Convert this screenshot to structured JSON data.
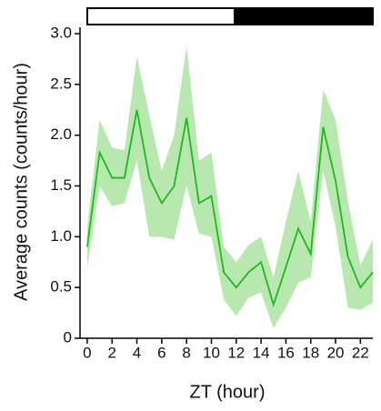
{
  "chart_data": {
    "type": "line",
    "x_label": "ZT (hour)",
    "y_label": "Average counts (counts/hour)",
    "x": [
      0,
      1,
      2,
      3,
      4,
      5,
      6,
      7,
      8,
      9,
      10,
      11,
      12,
      13,
      14,
      15,
      16,
      17,
      18,
      19,
      20,
      21,
      22,
      23
    ],
    "series": [
      {
        "color": "#1fb81f",
        "band_color": "#b8e8b0",
        "values": [
          0.9,
          1.83,
          1.58,
          1.58,
          2.25,
          1.58,
          1.33,
          1.5,
          2.17,
          1.33,
          1.4,
          0.65,
          0.5,
          0.65,
          0.75,
          0.33,
          0.7,
          1.08,
          0.83,
          2.08,
          1.55,
          0.8,
          0.5,
          0.65
        ],
        "lower": [
          0.7,
          1.5,
          1.3,
          1.33,
          1.75,
          1.0,
          1.0,
          0.97,
          1.5,
          1.03,
          1.0,
          0.38,
          0.22,
          0.4,
          0.45,
          0.1,
          0.3,
          0.55,
          0.6,
          1.65,
          1.1,
          0.3,
          0.28,
          0.35
        ],
        "upper": [
          1.1,
          2.15,
          1.88,
          1.85,
          2.78,
          2.2,
          1.65,
          2.0,
          2.88,
          1.75,
          1.83,
          0.9,
          0.75,
          0.92,
          1.0,
          0.6,
          1.15,
          1.65,
          1.15,
          2.45,
          2.15,
          1.35,
          0.72,
          0.97
        ]
      }
    ],
    "xlim": [
      -0.58,
      23
    ],
    "ylim": [
      0,
      3
    ],
    "xticks": [
      0,
      2,
      4,
      6,
      8,
      10,
      12,
      14,
      16,
      18,
      20,
      22
    ],
    "yticks": [
      0,
      {
        "value": 0.5,
        "label": "0.5"
      },
      {
        "value": 1,
        "label": "1.0"
      },
      {
        "value": 1.5,
        "label": "1.5"
      },
      {
        "value": 2,
        "label": "2.0"
      },
      {
        "value": 2.5,
        "label": "2.5"
      },
      {
        "value": 3,
        "label": "3.0"
      }
    ]
  }
}
